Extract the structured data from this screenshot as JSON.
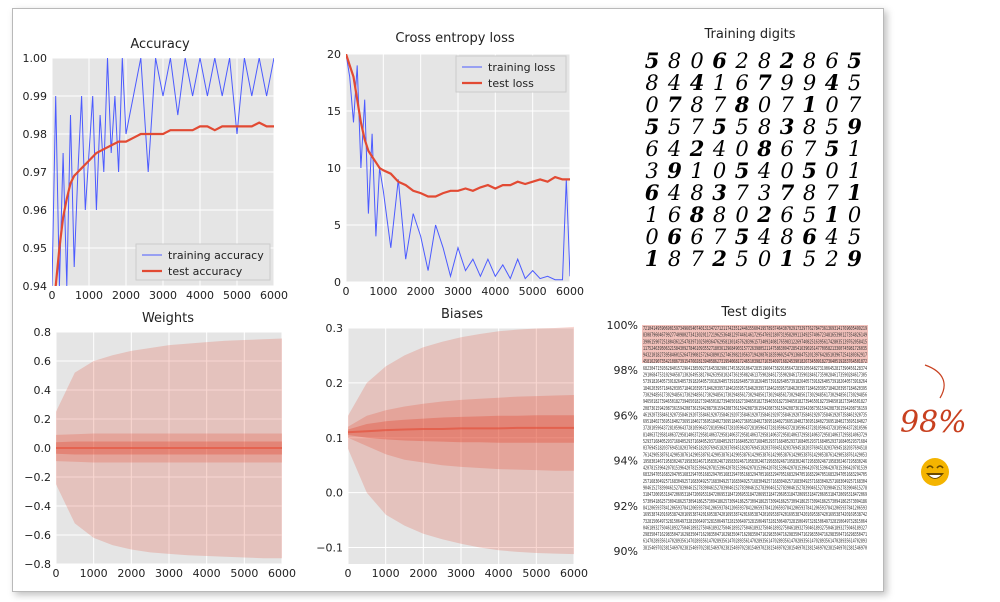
{
  "chart_data": [
    {
      "id": "accuracy",
      "type": "line",
      "title": "Accuracy",
      "xlim": [
        0,
        6000
      ],
      "ylim": [
        0.94,
        1.0
      ],
      "xticks": [
        "0",
        "1000",
        "2000",
        "3000",
        "4000",
        "5000",
        "6000"
      ],
      "yticks": [
        "0.94",
        "0.95",
        "0.96",
        "0.97",
        "0.98",
        "0.99",
        "1.00"
      ],
      "grid": true,
      "legend_position": "lower-right",
      "series": [
        {
          "name": "training accuracy",
          "color": "#4c5bff",
          "x": [
            0,
            100,
            200,
            300,
            400,
            500,
            600,
            700,
            800,
            900,
            1000,
            1100,
            1200,
            1300,
            1400,
            1500,
            1600,
            1700,
            1800,
            1900,
            2000,
            2200,
            2400,
            2600,
            2800,
            3000,
            3200,
            3400,
            3600,
            3800,
            4000,
            4200,
            4400,
            4600,
            4800,
            5000,
            5200,
            5400,
            5600,
            5800,
            6000
          ],
          "y": [
            0.94,
            0.99,
            0.94,
            0.975,
            0.94,
            0.985,
            0.945,
            0.97,
            0.99,
            0.96,
            0.975,
            0.99,
            0.96,
            0.985,
            0.97,
            1.0,
            0.975,
            0.99,
            0.97,
            1.0,
            0.98,
            0.99,
            1.0,
            0.97,
            1.0,
            0.99,
            1.0,
            0.985,
            1.0,
            0.99,
            1.0,
            0.99,
            1.0,
            0.99,
            1.0,
            0.98,
            1.0,
            0.99,
            1.0,
            0.99,
            1.0
          ]
        },
        {
          "name": "test accuracy",
          "color": "#e24a33",
          "x": [
            0,
            100,
            200,
            300,
            400,
            500,
            600,
            700,
            800,
            900,
            1000,
            1200,
            1400,
            1600,
            1800,
            2000,
            2200,
            2400,
            2600,
            2800,
            3000,
            3200,
            3400,
            3600,
            3800,
            4000,
            4200,
            4400,
            4600,
            4800,
            5000,
            5200,
            5400,
            5600,
            5800,
            6000
          ],
          "y": [
            0.938,
            0.94,
            0.95,
            0.958,
            0.963,
            0.967,
            0.969,
            0.97,
            0.971,
            0.972,
            0.973,
            0.975,
            0.976,
            0.977,
            0.978,
            0.978,
            0.979,
            0.98,
            0.98,
            0.98,
            0.98,
            0.981,
            0.981,
            0.981,
            0.981,
            0.982,
            0.982,
            0.981,
            0.982,
            0.982,
            0.982,
            0.982,
            0.982,
            0.983,
            0.982,
            0.982
          ]
        }
      ]
    },
    {
      "id": "loss",
      "type": "line",
      "title": "Cross entropy loss",
      "xlim": [
        0,
        6000
      ],
      "ylim": [
        0,
        20
      ],
      "xticks": [
        "0",
        "1000",
        "2000",
        "3000",
        "4000",
        "5000",
        "6000"
      ],
      "yticks": [
        "0",
        "5",
        "10",
        "15",
        "20"
      ],
      "grid": true,
      "legend_position": "top-right",
      "series": [
        {
          "name": "training loss",
          "color": "#4c5bff",
          "x": [
            0,
            100,
            200,
            300,
            400,
            500,
            600,
            700,
            800,
            900,
            1000,
            1200,
            1400,
            1600,
            1800,
            2000,
            2200,
            2400,
            2600,
            2800,
            3000,
            3200,
            3400,
            3600,
            3800,
            4000,
            4200,
            4400,
            4600,
            4800,
            5000,
            5200,
            5400,
            5600,
            5800,
            5900,
            6000
          ],
          "y": [
            20,
            18,
            14,
            19,
            10,
            16,
            6,
            13,
            4,
            10,
            8,
            3,
            9,
            2,
            6,
            4,
            1,
            5,
            3,
            0.5,
            3,
            1,
            2,
            0.5,
            2,
            0.5,
            1.5,
            0.3,
            2,
            0.3,
            1,
            0.3,
            0.5,
            0.2,
            0.2,
            9,
            0.5
          ]
        },
        {
          "name": "test loss",
          "color": "#e24a33",
          "x": [
            0,
            100,
            200,
            300,
            400,
            500,
            600,
            700,
            800,
            900,
            1000,
            1200,
            1400,
            1600,
            1800,
            2000,
            2200,
            2400,
            2600,
            2800,
            3000,
            3200,
            3400,
            3600,
            3800,
            4000,
            4200,
            4400,
            4600,
            4800,
            5000,
            5200,
            5400,
            5600,
            5800,
            6000
          ],
          "y": [
            20,
            19,
            18,
            16,
            14,
            12.5,
            11.5,
            11,
            10.5,
            10,
            9.8,
            9.5,
            8.8,
            8.5,
            8,
            7.8,
            7.5,
            7.5,
            7.8,
            8,
            8,
            8.2,
            8,
            8.3,
            8.5,
            8.2,
            8.5,
            8.5,
            8.8,
            8.6,
            8.8,
            9,
            8.8,
            9.2,
            9,
            9
          ]
        }
      ]
    },
    {
      "id": "weights",
      "type": "area",
      "title": "Weights",
      "xlim": [
        0,
        6000
      ],
      "ylim": [
        -0.8,
        0.8
      ],
      "xticks": [
        "0",
        "1000",
        "2000",
        "3000",
        "4000",
        "5000",
        "6000"
      ],
      "yticks": [
        "0.8",
        "0.6",
        "0.4",
        "0.2",
        "0.0",
        "−0.2",
        "−0.4",
        "−0.6",
        "−0.8"
      ],
      "grid": true,
      "band_color": "#e24a33",
      "x": [
        0,
        500,
        1000,
        1500,
        2000,
        2500,
        3000,
        3500,
        4000,
        4500,
        5000,
        5500,
        6000
      ],
      "max": [
        0.25,
        0.52,
        0.6,
        0.64,
        0.67,
        0.69,
        0.71,
        0.72,
        0.73,
        0.74,
        0.745,
        0.75,
        0.755
      ],
      "min": [
        -0.25,
        -0.52,
        -0.62,
        -0.67,
        -0.7,
        -0.72,
        -0.73,
        -0.74,
        -0.745,
        -0.75,
        -0.755,
        -0.76,
        -0.76
      ],
      "p90": [
        0.09,
        0.095,
        0.1,
        0.1,
        0.1,
        0.1,
        0.1,
        0.1,
        0.1,
        0.1,
        0.1,
        0.1,
        0.1
      ],
      "p10": [
        -0.09,
        -0.095,
        -0.1,
        -0.1,
        -0.1,
        -0.1,
        -0.1,
        -0.1,
        -0.1,
        -0.1,
        -0.1,
        -0.1,
        -0.1
      ],
      "p75": [
        0.04,
        0.045,
        0.045,
        0.045,
        0.045,
        0.045,
        0.045,
        0.045,
        0.045,
        0.045,
        0.045,
        0.045,
        0.045
      ],
      "p25": [
        -0.04,
        -0.045,
        -0.045,
        -0.045,
        -0.045,
        -0.045,
        -0.045,
        -0.045,
        -0.045,
        -0.045,
        -0.045,
        -0.045,
        -0.045
      ],
      "median": [
        0.0,
        0.0,
        0.0,
        0.0,
        0.0,
        0.0,
        0.0,
        0.0,
        0.0,
        0.0,
        0.0,
        0.0,
        0.0
      ]
    },
    {
      "id": "biases",
      "type": "area",
      "title": "Biases",
      "xlim": [
        0,
        6000
      ],
      "ylim": [
        -0.13,
        0.3
      ],
      "xticks": [
        "0",
        "1000",
        "2000",
        "3000",
        "4000",
        "5000",
        "6000"
      ],
      "yticks": [
        "0.3",
        "0.2",
        "0.1",
        "0.0",
        "−0.1"
      ],
      "grid": true,
      "band_color": "#e24a33",
      "x": [
        0,
        500,
        1000,
        1500,
        2000,
        2500,
        3000,
        3500,
        4000,
        4500,
        5000,
        5500,
        6000
      ],
      "max": [
        0.14,
        0.2,
        0.23,
        0.25,
        0.265,
        0.275,
        0.283,
        0.289,
        0.294,
        0.297,
        0.299,
        0.3,
        0.302
      ],
      "min": [
        0.08,
        0.0,
        -0.04,
        -0.06,
        -0.075,
        -0.085,
        -0.093,
        -0.1,
        -0.105,
        -0.108,
        -0.11,
        -0.111,
        -0.112
      ],
      "p90": [
        0.12,
        0.14,
        0.15,
        0.157,
        0.162,
        0.166,
        0.169,
        0.171,
        0.173,
        0.175,
        0.176,
        0.177,
        0.178
      ],
      "p10": [
        0.1,
        0.085,
        0.07,
        0.06,
        0.055,
        0.05,
        0.047,
        0.045,
        0.043,
        0.042,
        0.041,
        0.04,
        0.04
      ],
      "p75": [
        0.115,
        0.125,
        0.13,
        0.133,
        0.135,
        0.137,
        0.138,
        0.139,
        0.14,
        0.14,
        0.141,
        0.141,
        0.141
      ],
      "p25": [
        0.105,
        0.1,
        0.097,
        0.095,
        0.094,
        0.093,
        0.092,
        0.092,
        0.091,
        0.091,
        0.091,
        0.091,
        0.091
      ],
      "median": [
        0.11,
        0.112,
        0.114,
        0.115,
        0.116,
        0.116,
        0.117,
        0.117,
        0.117,
        0.118,
        0.118,
        0.118,
        0.118
      ]
    }
  ],
  "training_digits": {
    "title": "Training digits",
    "rows": [
      "5806282865",
      "8441679945",
      "0787807107",
      "5575583859",
      "6424086751",
      "3910540501",
      "6483737871",
      "1688026510",
      "0667548645",
      "1872501529"
    ]
  },
  "test_digits": {
    "title": "Test digits",
    "ticks": [
      "100%",
      "98%",
      "96%",
      "94%",
      "92%",
      "90%"
    ],
    "highlight_color": "#f2c1bb",
    "rows": [
      "7210414959069015973496654074013134727121174235124463556041957893746430702917329776278473613693141769605499219",
      "8308796046799277409802734130201172196253648129744614617295476921807319582091134925740672348165390127354826149",
      "3906159072518043612547839710250936476295813014576283961573409240817659831226974082516395617428035139762058415",
      "1175246395063215843092784610935527180361296849031577263980521147586309472854163902614770958213360745981726035",
      "9432101827395846015264739081572643890152746398210563719420876183596025479136847520139764285103967254180362917",
      "4581629073542108673915476028139405862731954068172465103982716354097168245390182673450918273640519283764501872",
      "6823047159362840157296413850927164538290617453829106472835196047382910564728391056482731906452817390456128374",
      "2910684753102946587130264953817042639581024736195082461375902846173590284617359028461735902846173590284617305",
      "5739182640573918264057391826405739182640573918264057391826405739182640573918264057391826405739182640573918264",
      "1846203957184620395718462039571846203957184620395718462039571846203957184620395718462039571846203957184620395",
      "7302948561730294856173029485617302948561730294856173029485617302948561730294856173029485617302948561730294856",
      "9465018273946501827394650182739465018273946501827394650182739465018273946501827394650182739465018273946501827",
      "2087361594208736159420873615942087361594208736159420873615942087361594208736159420873615942087361594208736159",
      "4619207358461920735846192073584619207358461920735846192073584619207358461920735846192073584619207358461920735",
      "6951840273695184027369518402736951840273695184027369518402736951840273695184027369518402736951840273695184027",
      "3728105964372810596437281059643728105964372810596437281059643728105964372810596437281059643728105964372810596",
      "8140637295814063729581406372958140637295814063729581406372958140637295814063729581406372958140637295814063729",
      "5293716840529371684052937168405293716840529371684052937168405293716840529371684052937168405293716840529371684",
      "0376945182037694518203769451820376945182037694518203769451820376945182037694518203769451820376945182037694518",
      "7614290538761429053876142905387614290538761429053876142905387614290538761429053876142905387614290538761429053",
      "1958302467195830246719583024671958302467195830246719583024671958302467195830246719583024671958302467195830246",
      "4207815396420781539642078153964207815396420781539642078153964207815396420781539642078153964207815396420781539",
      "6832947051683294705168329470516832947051683294705168329470516832947051683294705168329470516832947051683294705",
      "2571683049257168304925716830492571683049257168304925716830492571683049257168304925716830492571683049257168304",
      "9046152783904615278390461527839046152783904615278390461527839046152783904615278390461527839046152783904615278",
      "3184720695318472069531847206953184720695318472069531847206953184720695318472069531847206953184720695318472069",
      "5730941862573094186257309418625730941862573094186257309418625730941862573094186257309418625730941862573094186",
      "8412065937841206593784120659378412065937841206593784120659378412065937841206593784120659378412065937841206593",
      "1695387420169538742016953874201695387420169538742016953874201695387420169538742016953874201695387420169538742",
      "7328150649732815064973281506497328150649732815064973281506497328150649732815064973281506497328150649732815064",
      "0461893275046189327504618932750461893275046189327504618932750461893275046189327504618932750461893275046189327",
      "2983504716298350471629835047162983504716298350471629835047162983504716298350471629835047162983504716298350471",
      "6147028935614702893561470289356147028935614702893561470289356147028935614702893561470289356147028935614702893",
      "3815469702381546970238154697023815469702381546970238154697023815469702381546970238154697023815469702381546970"
    ]
  },
  "annotation": {
    "text": "98%",
    "color": "#c8401f",
    "emoji_color": "#f4b400"
  },
  "colors": {
    "plot_bg": "#e5e5e5",
    "grid": "#ffffff",
    "train": "#4c5bff",
    "test": "#e24a33"
  }
}
